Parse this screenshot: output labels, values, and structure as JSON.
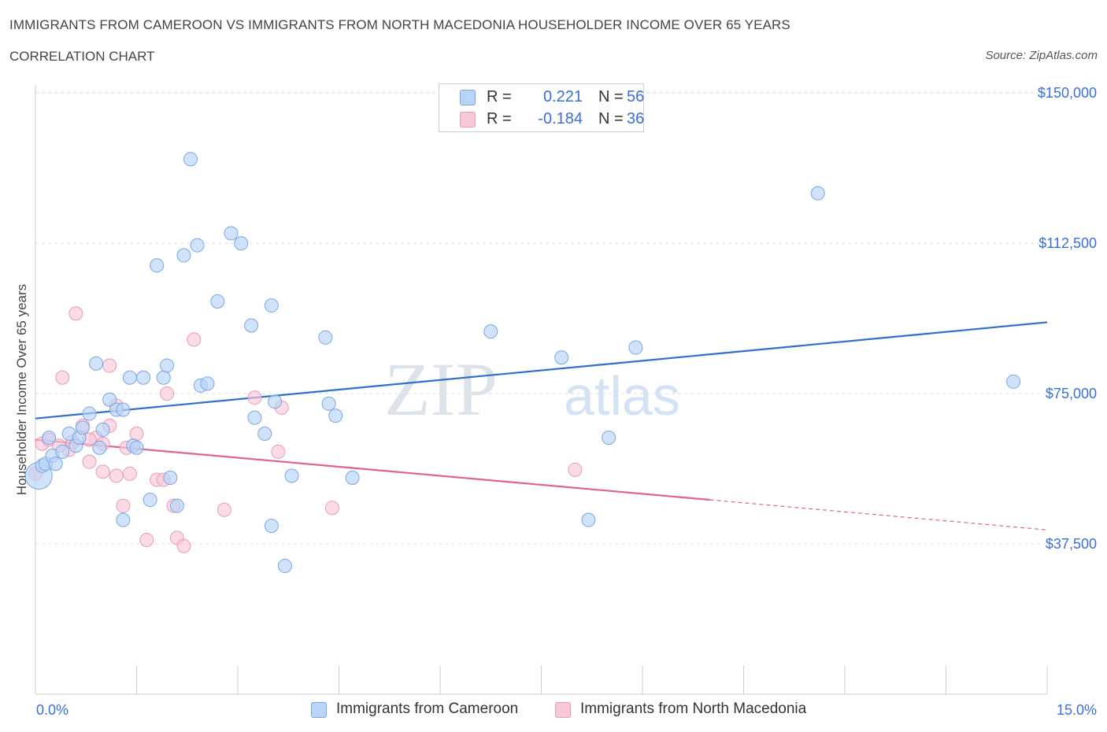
{
  "header": {
    "title": "IMMIGRANTS FROM CAMEROON VS IMMIGRANTS FROM NORTH MACEDONIA HOUSEHOLDER INCOME OVER 65 YEARS",
    "subtitle": "CORRELATION CHART",
    "source": "Source: ZipAtlas.com"
  },
  "watermark": {
    "zip": "ZIP",
    "atlas": "atlas"
  },
  "legend": {
    "r_label": "R =",
    "n_label": "N =",
    "rows": [
      {
        "r": "0.221",
        "n": "56",
        "fill": "#b8d4f7",
        "stroke": "#7aa6e3"
      },
      {
        "r": "-0.184",
        "n": "36",
        "fill": "#f9c8d8",
        "stroke": "#e99ab5"
      }
    ]
  },
  "chart_data": {
    "type": "scatter",
    "title": "IMMIGRANTS FROM CAMEROON VS IMMIGRANTS FROM NORTH MACEDONIA HOUSEHOLDER INCOME OVER 65 YEARS",
    "subtitle": "CORRELATION CHART",
    "xlabel": "",
    "ylabel": "Householder Income Over 65 years",
    "xlim": [
      0,
      15
    ],
    "ylim": [
      0,
      152000
    ],
    "x_tick_labels": [
      "0.0%",
      "15.0%"
    ],
    "y_ticks": [
      {
        "value": 150000,
        "label": "$150,000"
      },
      {
        "value": 112500,
        "label": "$112,500"
      },
      {
        "value": 75000,
        "label": "$75,000"
      },
      {
        "value": 37500,
        "label": "$37,500"
      }
    ],
    "grid": true,
    "legend_position": "bottom",
    "series": [
      {
        "name": "Immigrants from Cameroon",
        "color": "#7aa6e3",
        "fill": "#b8d4f7",
        "line_color": "#2f6fcc",
        "trend": {
          "x": [
            0,
            15
          ],
          "y": [
            68800,
            92800
          ]
        },
        "points": [
          [
            0.05,
            54500
          ],
          [
            0.1,
            57000
          ],
          [
            0.15,
            57500
          ],
          [
            0.2,
            64000
          ],
          [
            0.25,
            59500
          ],
          [
            0.3,
            57500
          ],
          [
            0.4,
            60500
          ],
          [
            0.5,
            65000
          ],
          [
            0.6,
            62000
          ],
          [
            0.65,
            64000
          ],
          [
            0.7,
            66500
          ],
          [
            0.8,
            70000
          ],
          [
            0.9,
            82500
          ],
          [
            1.0,
            66000
          ],
          [
            1.1,
            73500
          ],
          [
            1.2,
            71000
          ],
          [
            1.45,
            62000
          ],
          [
            1.5,
            61500
          ],
          [
            1.4,
            79000
          ],
          [
            1.6,
            79000
          ],
          [
            1.9,
            79000
          ],
          [
            1.95,
            82000
          ],
          [
            1.3,
            43500
          ],
          [
            1.7,
            48500
          ],
          [
            1.8,
            107000
          ],
          [
            2.0,
            54000
          ],
          [
            2.1,
            47000
          ],
          [
            2.2,
            109500
          ],
          [
            2.3,
            133500
          ],
          [
            2.4,
            112000
          ],
          [
            2.45,
            77000
          ],
          [
            2.55,
            77500
          ],
          [
            2.7,
            98000
          ],
          [
            2.9,
            115000
          ],
          [
            3.05,
            112500
          ],
          [
            3.2,
            92000
          ],
          [
            3.25,
            69000
          ],
          [
            3.4,
            65000
          ],
          [
            3.5,
            97000
          ],
          [
            3.55,
            73000
          ],
          [
            3.5,
            42000
          ],
          [
            3.7,
            32000
          ],
          [
            3.8,
            54500
          ],
          [
            4.3,
            89000
          ],
          [
            4.35,
            72500
          ],
          [
            4.45,
            69500
          ],
          [
            4.7,
            54000
          ],
          [
            6.75,
            90500
          ],
          [
            7.8,
            84000
          ],
          [
            8.2,
            43500
          ],
          [
            8.5,
            64000
          ],
          [
            8.9,
            86500
          ],
          [
            11.6,
            125000
          ],
          [
            14.5,
            78000
          ],
          [
            1.3,
            71000
          ],
          [
            0.95,
            61500
          ]
        ]
      },
      {
        "name": "Immigrants from North Macedonia",
        "color": "#e99ab5",
        "fill": "#f9c8d8",
        "line_color": "#e0628f",
        "trend": {
          "x": [
            0,
            10.0
          ],
          "y": [
            63500,
            48500
          ]
        },
        "trend_dashed": {
          "x": [
            10.0,
            15
          ],
          "y": [
            48500,
            41000
          ]
        },
        "points": [
          [
            0.0,
            55000
          ],
          [
            0.1,
            62500
          ],
          [
            0.2,
            63500
          ],
          [
            0.4,
            79000
          ],
          [
            0.5,
            61000
          ],
          [
            0.6,
            95000
          ],
          [
            0.7,
            67000
          ],
          [
            0.8,
            58000
          ],
          [
            0.9,
            64000
          ],
          [
            1.0,
            55500
          ],
          [
            1.0,
            62500
          ],
          [
            1.1,
            67000
          ],
          [
            1.1,
            82000
          ],
          [
            1.2,
            54500
          ],
          [
            1.2,
            72000
          ],
          [
            1.3,
            47000
          ],
          [
            1.35,
            61500
          ],
          [
            1.4,
            55000
          ],
          [
            1.5,
            65000
          ],
          [
            1.65,
            38500
          ],
          [
            1.8,
            53500
          ],
          [
            1.9,
            53500
          ],
          [
            1.95,
            75000
          ],
          [
            2.05,
            47000
          ],
          [
            2.1,
            39000
          ],
          [
            2.2,
            37000
          ],
          [
            2.35,
            88500
          ],
          [
            2.8,
            46000
          ],
          [
            3.25,
            74000
          ],
          [
            3.6,
            60500
          ],
          [
            3.65,
            71500
          ],
          [
            4.4,
            46500
          ],
          [
            8.0,
            56000
          ],
          [
            0.55,
            63000
          ],
          [
            0.35,
            62000
          ],
          [
            0.8,
            63500
          ]
        ]
      }
    ]
  },
  "bottom_legend": [
    {
      "label": "Immigrants from Cameroon",
      "fill": "#b8d4f7",
      "stroke": "#7aa6e3"
    },
    {
      "label": "Immigrants from North Macedonia",
      "fill": "#f9c8d8",
      "stroke": "#e99ab5"
    }
  ]
}
